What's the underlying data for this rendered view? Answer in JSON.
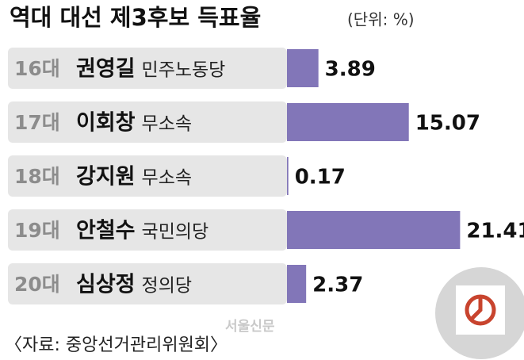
{
  "chart_data": {
    "type": "bar",
    "orientation": "horizontal",
    "title": "역대 대선 제3후보 득표율",
    "unit": "(단위: %)",
    "categories": [
      "16대",
      "17대",
      "18대",
      "19대",
      "20대"
    ],
    "candidates": [
      "권영길",
      "이회창",
      "강지원",
      "안철수",
      "심상정"
    ],
    "parties": [
      "민주노동당",
      "무소속",
      "무소속",
      "국민의당",
      "정의당"
    ],
    "values": [
      3.89,
      15.07,
      0.17,
      21.41,
      2.37
    ],
    "color": "#8276b8",
    "source": "〈자료: 중앙선거관리위원회〉",
    "watermark": "서울신문"
  }
}
